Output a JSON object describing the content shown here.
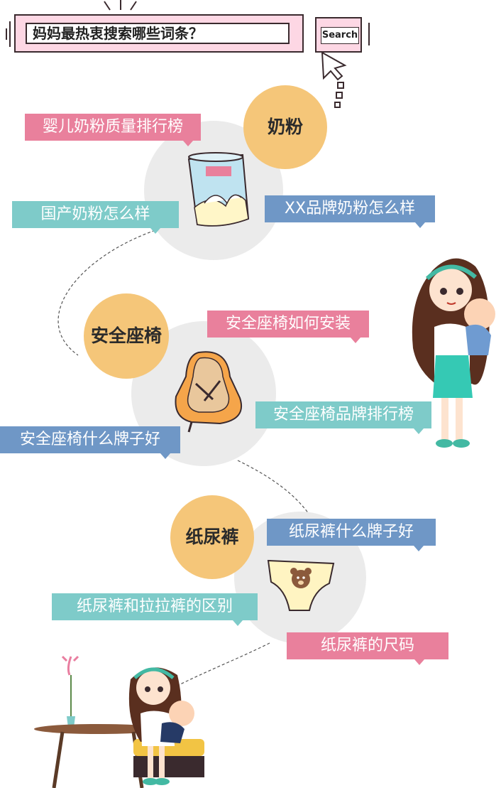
{
  "header": {
    "title": "妈妈最热衷搜索哪些词条？",
    "search_label": "Search"
  },
  "sections": [
    {
      "category": "奶粉",
      "tags": [
        "婴儿奶粉质量排行榜",
        "国产奶粉怎么样",
        "XX品牌奶粉怎么样"
      ]
    },
    {
      "category": "安全座椅",
      "tags": [
        "安全座椅如何安装",
        "安全座椅品牌排行榜",
        "安全座椅什么牌子好"
      ]
    },
    {
      "category": "纸尿裤",
      "tags": [
        "纸尿裤什么牌子好",
        "纸尿裤和拉拉裤的区别",
        "纸尿裤的尺码"
      ]
    }
  ],
  "colors": {
    "pink": "#e9809c",
    "teal": "#7ecbc9",
    "blue": "#6f97c6",
    "category": "#f5c679",
    "circle": "#ebebeb"
  },
  "icons": [
    "cursor-arrow-icon",
    "milk-can-icon",
    "car-seat-icon",
    "diaper-icon",
    "mother-baby-illustration",
    "mother-feeding-illustration"
  ]
}
